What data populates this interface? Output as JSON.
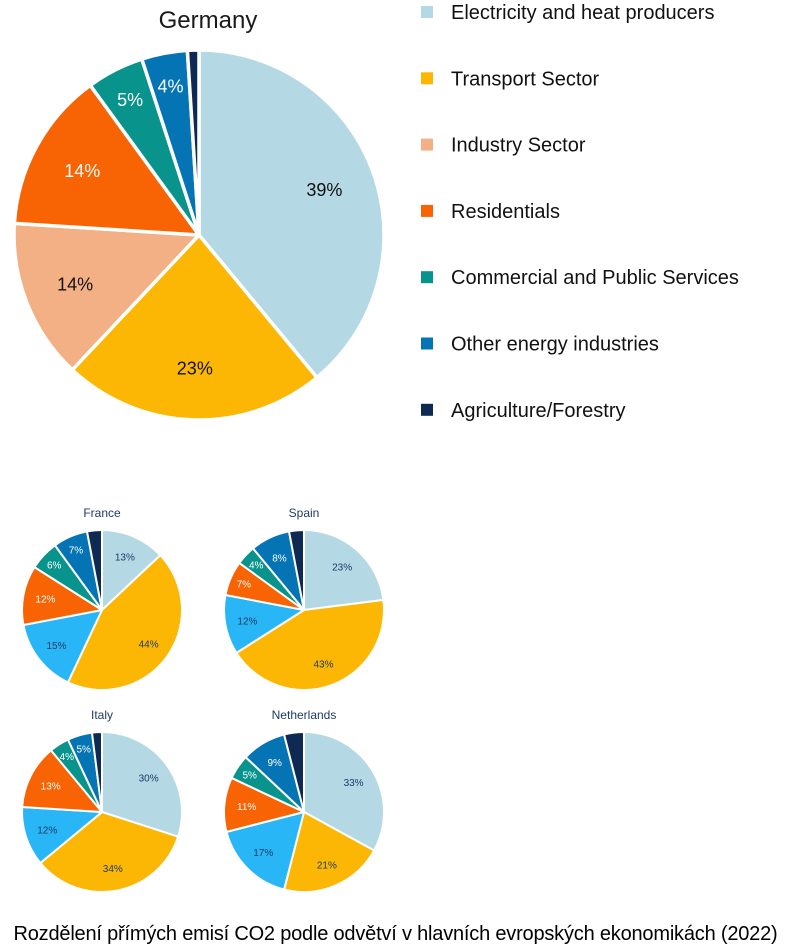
{
  "caption": "Rozdělení přímých emisí CO2 podle odvětví v hlavních evropských ekonomikách (2022)",
  "legend": [
    {
      "label": "Electricity and heat producers",
      "color": "#b4d8e4"
    },
    {
      "label": "Transport Sector",
      "color": "#fbb703"
    },
    {
      "label": "Industry Sector",
      "color": "#f3b084"
    },
    {
      "label": "Residentials",
      "color": "#f86404"
    },
    {
      "label": "Commercial and Public Services",
      "color": "#08948c"
    },
    {
      "label": "Other energy industries",
      "color": "#0474b4"
    },
    {
      "label": "Agriculture/Forestry",
      "color": "#0f2a52"
    }
  ],
  "chart_data": [
    {
      "type": "pie",
      "title": "Germany",
      "slices": [
        {
          "value": 39,
          "label": "39%",
          "color": "#b4d8e4"
        },
        {
          "value": 23,
          "label": "23%",
          "color": "#fbb703"
        },
        {
          "value": 14,
          "label": "14%",
          "color": "#f3b084"
        },
        {
          "value": 14,
          "label": "14%",
          "color": "#f86404"
        },
        {
          "value": 5,
          "label": "5%",
          "color": "#08948c"
        },
        {
          "value": 4,
          "label": "4%",
          "color": "#0474b4"
        },
        {
          "value": 1,
          "label": "",
          "color": "#0f2a52"
        }
      ]
    },
    {
      "type": "pie",
      "title": "France",
      "slices": [
        {
          "value": 13,
          "label": "13%",
          "color": "#b4d8e4"
        },
        {
          "value": 44,
          "label": "44%",
          "color": "#fbb703"
        },
        {
          "value": 15,
          "label": "15%",
          "color": "#29b6f6"
        },
        {
          "value": 12,
          "label": "12%",
          "color": "#f86404"
        },
        {
          "value": 6,
          "label": "6%",
          "color": "#08948c"
        },
        {
          "value": 7,
          "label": "7%",
          "color": "#0474b4"
        },
        {
          "value": 3,
          "label": "",
          "color": "#0f2a52"
        }
      ]
    },
    {
      "type": "pie",
      "title": "Spain",
      "slices": [
        {
          "value": 23,
          "label": "23%",
          "color": "#b4d8e4"
        },
        {
          "value": 43,
          "label": "43%",
          "color": "#fbb703"
        },
        {
          "value": 12,
          "label": "12%",
          "color": "#29b6f6"
        },
        {
          "value": 7,
          "label": "7%",
          "color": "#f86404"
        },
        {
          "value": 4,
          "label": "4%",
          "color": "#08948c"
        },
        {
          "value": 8,
          "label": "8%",
          "color": "#0474b4"
        },
        {
          "value": 3,
          "label": "",
          "color": "#0f2a52"
        }
      ]
    },
    {
      "type": "pie",
      "title": "Italy",
      "slices": [
        {
          "value": 30,
          "label": "30%",
          "color": "#b4d8e4"
        },
        {
          "value": 34,
          "label": "34%",
          "color": "#fbb703"
        },
        {
          "value": 12,
          "label": "12%",
          "color": "#29b6f6"
        },
        {
          "value": 13,
          "label": "13%",
          "color": "#f86404"
        },
        {
          "value": 4,
          "label": "4%",
          "color": "#08948c"
        },
        {
          "value": 5,
          "label": "5%",
          "color": "#0474b4"
        },
        {
          "value": 2,
          "label": "",
          "color": "#0f2a52"
        }
      ]
    },
    {
      "type": "pie",
      "title": "Netherlands",
      "slices": [
        {
          "value": 33,
          "label": "33%",
          "color": "#b4d8e4"
        },
        {
          "value": 21,
          "label": "21%",
          "color": "#fbb703"
        },
        {
          "value": 17,
          "label": "17%",
          "color": "#29b6f6"
        },
        {
          "value": 11,
          "label": "11%",
          "color": "#f86404"
        },
        {
          "value": 5,
          "label": "5%",
          "color": "#08948c"
        },
        {
          "value": 9,
          "label": "9%",
          "color": "#0474b4"
        },
        {
          "value": 4,
          "label": "",
          "color": "#0f2a52"
        }
      ]
    }
  ]
}
